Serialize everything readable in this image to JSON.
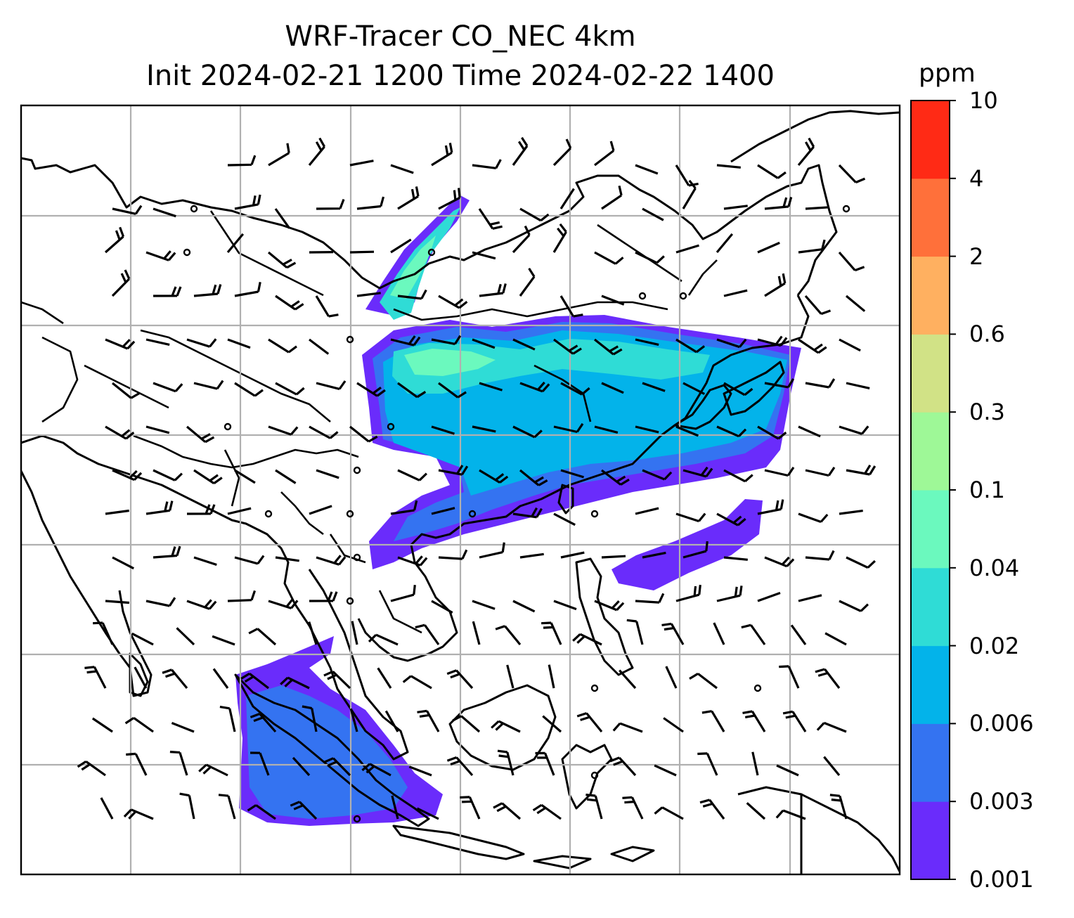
{
  "title": {
    "line1": "WRF-Tracer CO_NEC 4km",
    "line2": "Init 2024-02-21 1200 Time 2024-02-22 1400"
  },
  "colorbar": {
    "unit": "ppm",
    "levels": [
      "0.001",
      "0.003",
      "0.006",
      "0.02",
      "0.04",
      "0.1",
      "0.3",
      "0.6",
      "2",
      "4",
      "10"
    ],
    "colors": [
      "#6a2cfb",
      "#3473f1",
      "#03b3ea",
      "#2fdcd6",
      "#6bf9be",
      "#9ef897",
      "#d1e286",
      "#ffb060",
      "#ff703a",
      "#ff2a15"
    ]
  },
  "map": {
    "coastline_color": "#000000",
    "grid_color": "#b0b0b0",
    "barb_color": "#000000",
    "legend": "colorbar-right"
  }
}
